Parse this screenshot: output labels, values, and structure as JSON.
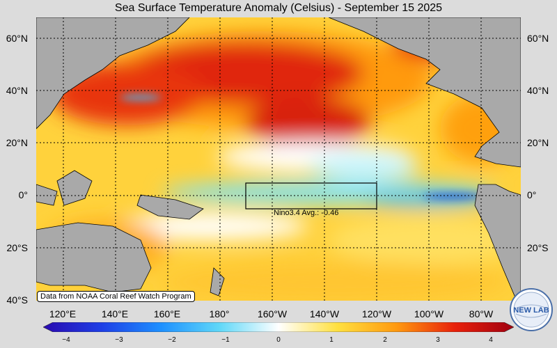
{
  "title": "Sea Surface Temperature Anomaly (Celsius) - September 15 2025",
  "credit": "Data from NOAA Coral Reef Watch Program",
  "nino_label": "Nino3.4 Avg.: -0.46",
  "logo_text": "NEW LAB",
  "lat_labels": [
    "60°N",
    "40°N",
    "20°N",
    "0°",
    "20°S",
    "40°S"
  ],
  "lon_labels": [
    "120°E",
    "140°E",
    "160°E",
    "180°",
    "160°W",
    "140°W",
    "120°W",
    "100°W",
    "80°W"
  ],
  "colorbar": {
    "min": -4,
    "max": 4,
    "ticks": [
      "−4",
      "−3",
      "−2",
      "−1",
      "0",
      "1",
      "2",
      "3",
      "4"
    ]
  },
  "colors": {
    "land": "#a9a9a9",
    "warm_strong": "#d01010",
    "warm": "#ff8c00",
    "mild": "#ffd94a",
    "cool": "#7fe3f5",
    "cold": "#1e78e6",
    "background": "#dcdcdc"
  }
}
